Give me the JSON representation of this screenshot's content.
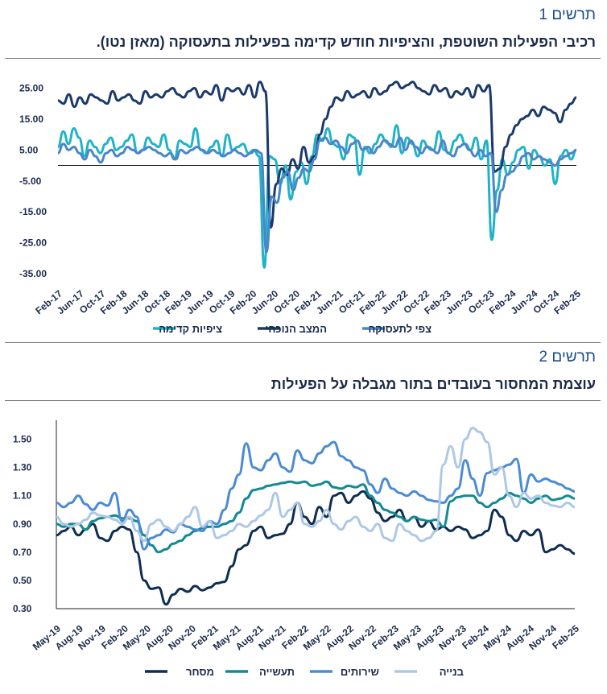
{
  "figures": [
    {
      "label": "תרשים 1",
      "title": "רכיבי הפעילות השוטפת, והציפיות חודש קדימה בפעילות בתעסוקה (מאזן נטו)."
    },
    {
      "label": "תרשים 2",
      "title": "עוצמת המחסור בעובדים בתור מגבלה על הפעילות"
    }
  ],
  "chart_data": [
    {
      "type": "line",
      "ylim": [
        -35,
        28
      ],
      "yticks": [
        "25.00",
        "15.00",
        "5.00",
        "-5.00",
        "-15.00",
        "-25.00",
        "-35.00"
      ],
      "ytick_values": [
        25,
        15,
        5,
        -5,
        -15,
        -25,
        -35
      ],
      "xticks": [
        "Feb-17",
        "Jun-17",
        "Oct-17",
        "Feb-18",
        "Jun-18",
        "Oct-18",
        "Feb-19",
        "Jun-19",
        "Oct-19",
        "Feb-20",
        "Jun-20",
        "Oct-20",
        "Feb-21",
        "Jun-21",
        "Oct-21",
        "Feb-22",
        "Jun-22",
        "Oct-22",
        "Feb-23",
        "Jun-23",
        "Oct-23",
        "Feb-24",
        "Jun-24",
        "Oct-24",
        "Feb-25"
      ],
      "series": [
        {
          "name": "ציפיות קדימה",
          "color": "#1fb3c8",
          "values": [
            6,
            11,
            7,
            12,
            9,
            3,
            8,
            6,
            4,
            7,
            9,
            5,
            6,
            8,
            10,
            4,
            5,
            9,
            7,
            6,
            10,
            5,
            2,
            8,
            7,
            6,
            12,
            5,
            4,
            6,
            8,
            3,
            10,
            5,
            6,
            7,
            4,
            5,
            3,
            -33,
            3,
            2,
            -6,
            0,
            -11,
            -2,
            1,
            -6,
            3,
            10,
            8,
            12,
            7,
            6,
            2,
            10,
            9,
            -3,
            6,
            4,
            7,
            10,
            8,
            6,
            13,
            4,
            9,
            7,
            3,
            8,
            6,
            5,
            11,
            5,
            4,
            8,
            10,
            7,
            5,
            9,
            2,
            8,
            -24,
            -8,
            2,
            -3,
            1,
            5,
            6,
            -1,
            5,
            3,
            0,
            2,
            -6,
            3,
            5,
            2,
            5
          ]
        },
        {
          "name": "המצב הנוכחי",
          "color": "#1b3a6b",
          "values": [
            21,
            20,
            23,
            19,
            22,
            20,
            23,
            22,
            21,
            20,
            24,
            21,
            22,
            23,
            21,
            20,
            24,
            22,
            23,
            22,
            24,
            25,
            23,
            22,
            24,
            25,
            22,
            24,
            23,
            26,
            21,
            25,
            24,
            25,
            23,
            26,
            22,
            27,
            24,
            -20,
            -6,
            -1,
            -3,
            2,
            -1,
            6,
            1,
            3,
            10,
            15,
            19,
            22,
            21,
            24,
            22,
            23,
            24,
            22,
            25,
            23,
            24,
            26,
            27,
            25,
            26,
            27,
            25,
            24,
            23,
            26,
            24,
            25,
            22,
            24,
            23,
            25,
            22,
            26,
            24,
            26,
            -2,
            -1,
            6,
            10,
            13,
            15,
            16,
            18,
            16,
            19,
            18,
            17,
            14,
            18,
            20,
            22
          ]
        },
        {
          "name": "צפי לתעסוקה",
          "color": "#4a86c8",
          "values": [
            4,
            7,
            5,
            6,
            4,
            2,
            5,
            3,
            1,
            4,
            5,
            3,
            4,
            6,
            5,
            4,
            5,
            6,
            5,
            4,
            3,
            4,
            2,
            5,
            4,
            5,
            6,
            5,
            4,
            5,
            4,
            3,
            4,
            5,
            4,
            3,
            4,
            5,
            4,
            -28,
            -10,
            -12,
            -4,
            -2,
            -8,
            -4,
            -1,
            -2,
            2,
            8,
            9,
            7,
            8,
            6,
            4,
            7,
            8,
            5,
            6,
            4,
            6,
            8,
            7,
            6,
            9,
            5,
            8,
            6,
            4,
            6,
            5,
            4,
            8,
            4,
            3,
            6,
            7,
            5,
            3,
            5,
            3,
            4,
            -15,
            -8,
            -3,
            -2,
            0,
            3,
            4,
            2,
            3,
            2,
            1,
            0,
            2,
            3,
            4,
            5
          ]
        }
      ]
    },
    {
      "type": "line",
      "ylim": [
        0.3,
        1.6
      ],
      "yticks": [
        "1.50",
        "1.30",
        "1.10",
        "0.90",
        "0.70",
        "0.50",
        "0.30"
      ],
      "ytick_values": [
        1.5,
        1.3,
        1.1,
        0.9,
        0.7,
        0.5,
        0.3
      ],
      "xticks": [
        "May-19",
        "Aug-19",
        "Nov-19",
        "Feb-20",
        "May-20",
        "Aug-20",
        "Nov-20",
        "Feb-21",
        "May-21",
        "Aug-21",
        "Nov-21",
        "Feb-22",
        "May-22",
        "Aug-22",
        "Nov-22",
        "Feb-23",
        "May-23",
        "Aug-23",
        "Nov-23",
        "Feb-24",
        "May-24",
        "Aug-24",
        "Nov-24",
        "Feb-25"
      ],
      "series": [
        {
          "name": "מסחר",
          "color": "#0f2d52",
          "values": [
            0.82,
            0.85,
            0.88,
            0.82,
            0.86,
            0.9,
            0.8,
            0.78,
            0.85,
            0.88,
            0.86,
            0.7,
            0.5,
            0.44,
            0.45,
            0.33,
            0.4,
            0.44,
            0.42,
            0.46,
            0.43,
            0.45,
            0.48,
            0.49,
            0.6,
            0.72,
            0.75,
            0.85,
            0.88,
            0.8,
            0.82,
            0.83,
            0.9,
            1.05,
            0.95,
            0.9,
            1.02,
            0.95,
            1.1,
            1.12,
            1.05,
            1.1,
            1.13,
            1.08,
            0.98,
            0.92,
            0.95,
            1.0,
            0.92,
            0.95,
            0.88,
            0.92,
            0.86,
            0.88,
            0.85,
            0.88,
            0.86,
            0.8,
            0.82,
            0.85,
            1.0,
            0.95,
            0.82,
            0.78,
            0.85,
            0.82,
            0.86,
            0.7,
            0.72,
            0.75,
            0.72,
            0.69
          ]
        },
        {
          "name": "תעשייה",
          "color": "#138a93",
          "values": [
            0.9,
            0.88,
            0.9,
            0.9,
            0.86,
            0.92,
            0.94,
            0.95,
            0.96,
            0.94,
            0.94,
            0.92,
            0.82,
            0.75,
            0.7,
            0.72,
            0.76,
            0.78,
            0.82,
            0.85,
            0.87,
            0.88,
            0.88,
            0.9,
            0.92,
            0.98,
            1.08,
            1.14,
            1.15,
            1.17,
            1.18,
            1.19,
            1.2,
            1.19,
            1.2,
            1.17,
            1.18,
            1.2,
            1.16,
            1.15,
            1.17,
            1.16,
            1.18,
            1.1,
            1.05,
            1.0,
            0.98,
            0.95,
            0.92,
            0.95,
            0.93,
            0.92,
            0.93,
            0.88,
            1.06,
            1.09,
            1.1,
            1.1,
            1.05,
            1.02,
            1.05,
            1.08,
            1.12,
            1.1,
            1.08,
            1.05,
            1.08,
            1.1,
            1.07,
            1.08,
            1.1,
            1.08
          ]
        },
        {
          "name": "שירותים",
          "color": "#4a8bd4",
          "values": [
            1.05,
            1.02,
            1.05,
            1.1,
            1.04,
            1.0,
            1.05,
            1.03,
            1.12,
            0.92,
            1.0,
            0.95,
            0.72,
            0.8,
            0.82,
            0.86,
            0.84,
            0.9,
            0.88,
            0.86,
            0.85,
            0.92,
            0.9,
            1.0,
            1.15,
            1.25,
            1.47,
            1.3,
            1.28,
            1.35,
            1.4,
            1.3,
            1.27,
            1.42,
            1.35,
            1.33,
            1.4,
            1.45,
            1.48,
            1.38,
            1.35,
            1.3,
            1.28,
            1.18,
            1.12,
            1.22,
            1.15,
            1.12,
            1.1,
            1.13,
            1.1,
            1.07,
            1.06,
            1.05,
            1.1,
            1.15,
            1.35,
            1.22,
            1.1,
            1.26,
            1.28,
            1.3,
            1.32,
            1.36,
            1.12,
            1.25,
            1.2,
            1.22,
            1.2,
            1.18,
            1.15,
            1.13
          ]
        },
        {
          "name": "בנייה",
          "color": "#adc8e6",
          "values": [
            0.95,
            0.9,
            0.88,
            0.9,
            0.93,
            0.98,
            0.96,
            0.95,
            0.93,
            0.9,
            0.95,
            0.85,
            0.78,
            0.9,
            0.93,
            0.88,
            0.85,
            0.9,
            0.95,
            1.02,
            0.88,
            0.92,
            0.8,
            0.82,
            0.85,
            0.9,
            0.88,
            0.92,
            0.96,
            1.0,
            1.12,
            0.95,
            1.0,
            1.05,
            0.9,
            0.88,
            0.92,
            1.0,
            0.9,
            0.86,
            0.92,
            0.95,
            0.88,
            0.85,
            0.9,
            0.8,
            0.78,
            0.9,
            0.85,
            0.82,
            0.78,
            0.8,
            0.85,
            1.32,
            1.45,
            1.3,
            1.5,
            1.58,
            1.55,
            1.48,
            1.25,
            1.3,
            1.1,
            1.02,
            1.12,
            1.08,
            1.1,
            1.05,
            1.03,
            1.02,
            1.05,
            1.02
          ]
        }
      ]
    }
  ]
}
